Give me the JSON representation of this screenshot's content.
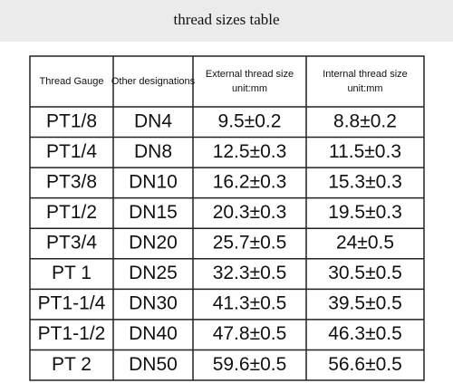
{
  "title": "thread sizes table",
  "table": {
    "headers": [
      [
        "Thread Gauge"
      ],
      [
        "Other designations"
      ],
      [
        "External thread size",
        "unit:mm"
      ],
      [
        "Internal thread size",
        "unit:mm"
      ]
    ],
    "rows": [
      [
        "PT1/8",
        "DN4",
        "9.5±0.2",
        "8.8±0.2"
      ],
      [
        "PT1/4",
        "DN8",
        "12.5±0.3",
        "11.5±0.3"
      ],
      [
        "PT3/8",
        "DN10",
        "16.2±0.3",
        "15.3±0.3"
      ],
      [
        "PT1/2",
        "DN15",
        "20.3±0.3",
        "19.5±0.3"
      ],
      [
        "PT3/4",
        "DN20",
        "25.7±0.5",
        "24±0.5"
      ],
      [
        "PT 1",
        "DN25",
        "32.3±0.5",
        "30.5±0.5"
      ],
      [
        "PT1-1/4",
        "DN30",
        "41.3±0.5",
        "39.5±0.5"
      ],
      [
        "PT1-1/2",
        "DN40",
        "47.8±0.5",
        "46.3±0.5"
      ],
      [
        "PT 2",
        "DN50",
        "59.6±0.5",
        "56.6±0.5"
      ]
    ]
  }
}
